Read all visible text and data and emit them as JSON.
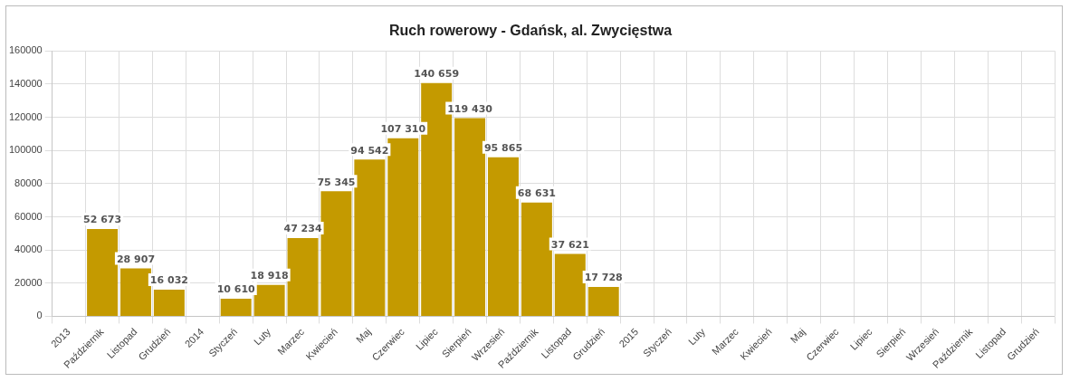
{
  "chart_data": {
    "type": "bar",
    "title": "Ruch rowerowy - Gdańsk, al. Zwycięstwa",
    "categories": [
      "2013",
      "Październik",
      "Listopad",
      "Grudzień",
      "2014",
      "Styczeń",
      "Luty",
      "Marzec",
      "Kwiecień",
      "Maj",
      "Czerwiec",
      "Lipiec",
      "Sierpień",
      "Wrzesień",
      "Październik",
      "Listopad",
      "Grudzień",
      "2015",
      "Styczeń",
      "Luty",
      "Marzec",
      "Kwiecień",
      "Maj",
      "Czerwiec",
      "Lipiec",
      "Sierpień",
      "Wrzesień",
      "Październik",
      "Listopad",
      "Grudzień"
    ],
    "values": [
      null,
      52673,
      28907,
      16032,
      null,
      10610,
      18918,
      47234,
      75345,
      94542,
      107310,
      140659,
      119430,
      95865,
      68631,
      37621,
      17728,
      null,
      null,
      null,
      null,
      null,
      null,
      null,
      null,
      null,
      null,
      null,
      null,
      null
    ],
    "value_labels": [
      null,
      "52 673",
      "28 907",
      "16 032",
      null,
      "10 610",
      "18 918",
      "47 234",
      "75 345",
      "94 542",
      "107 310",
      "140 659",
      "119 430",
      "95 865",
      "68 631",
      "37 621",
      "17 728",
      null,
      null,
      null,
      null,
      null,
      null,
      null,
      null,
      null,
      null,
      null,
      null,
      null
    ],
    "color": "#c49a00",
    "ylim": [
      0,
      160000
    ],
    "yticks": [
      0,
      20000,
      40000,
      60000,
      80000,
      100000,
      120000,
      140000,
      160000
    ],
    "grid": true,
    "legend": false
  }
}
